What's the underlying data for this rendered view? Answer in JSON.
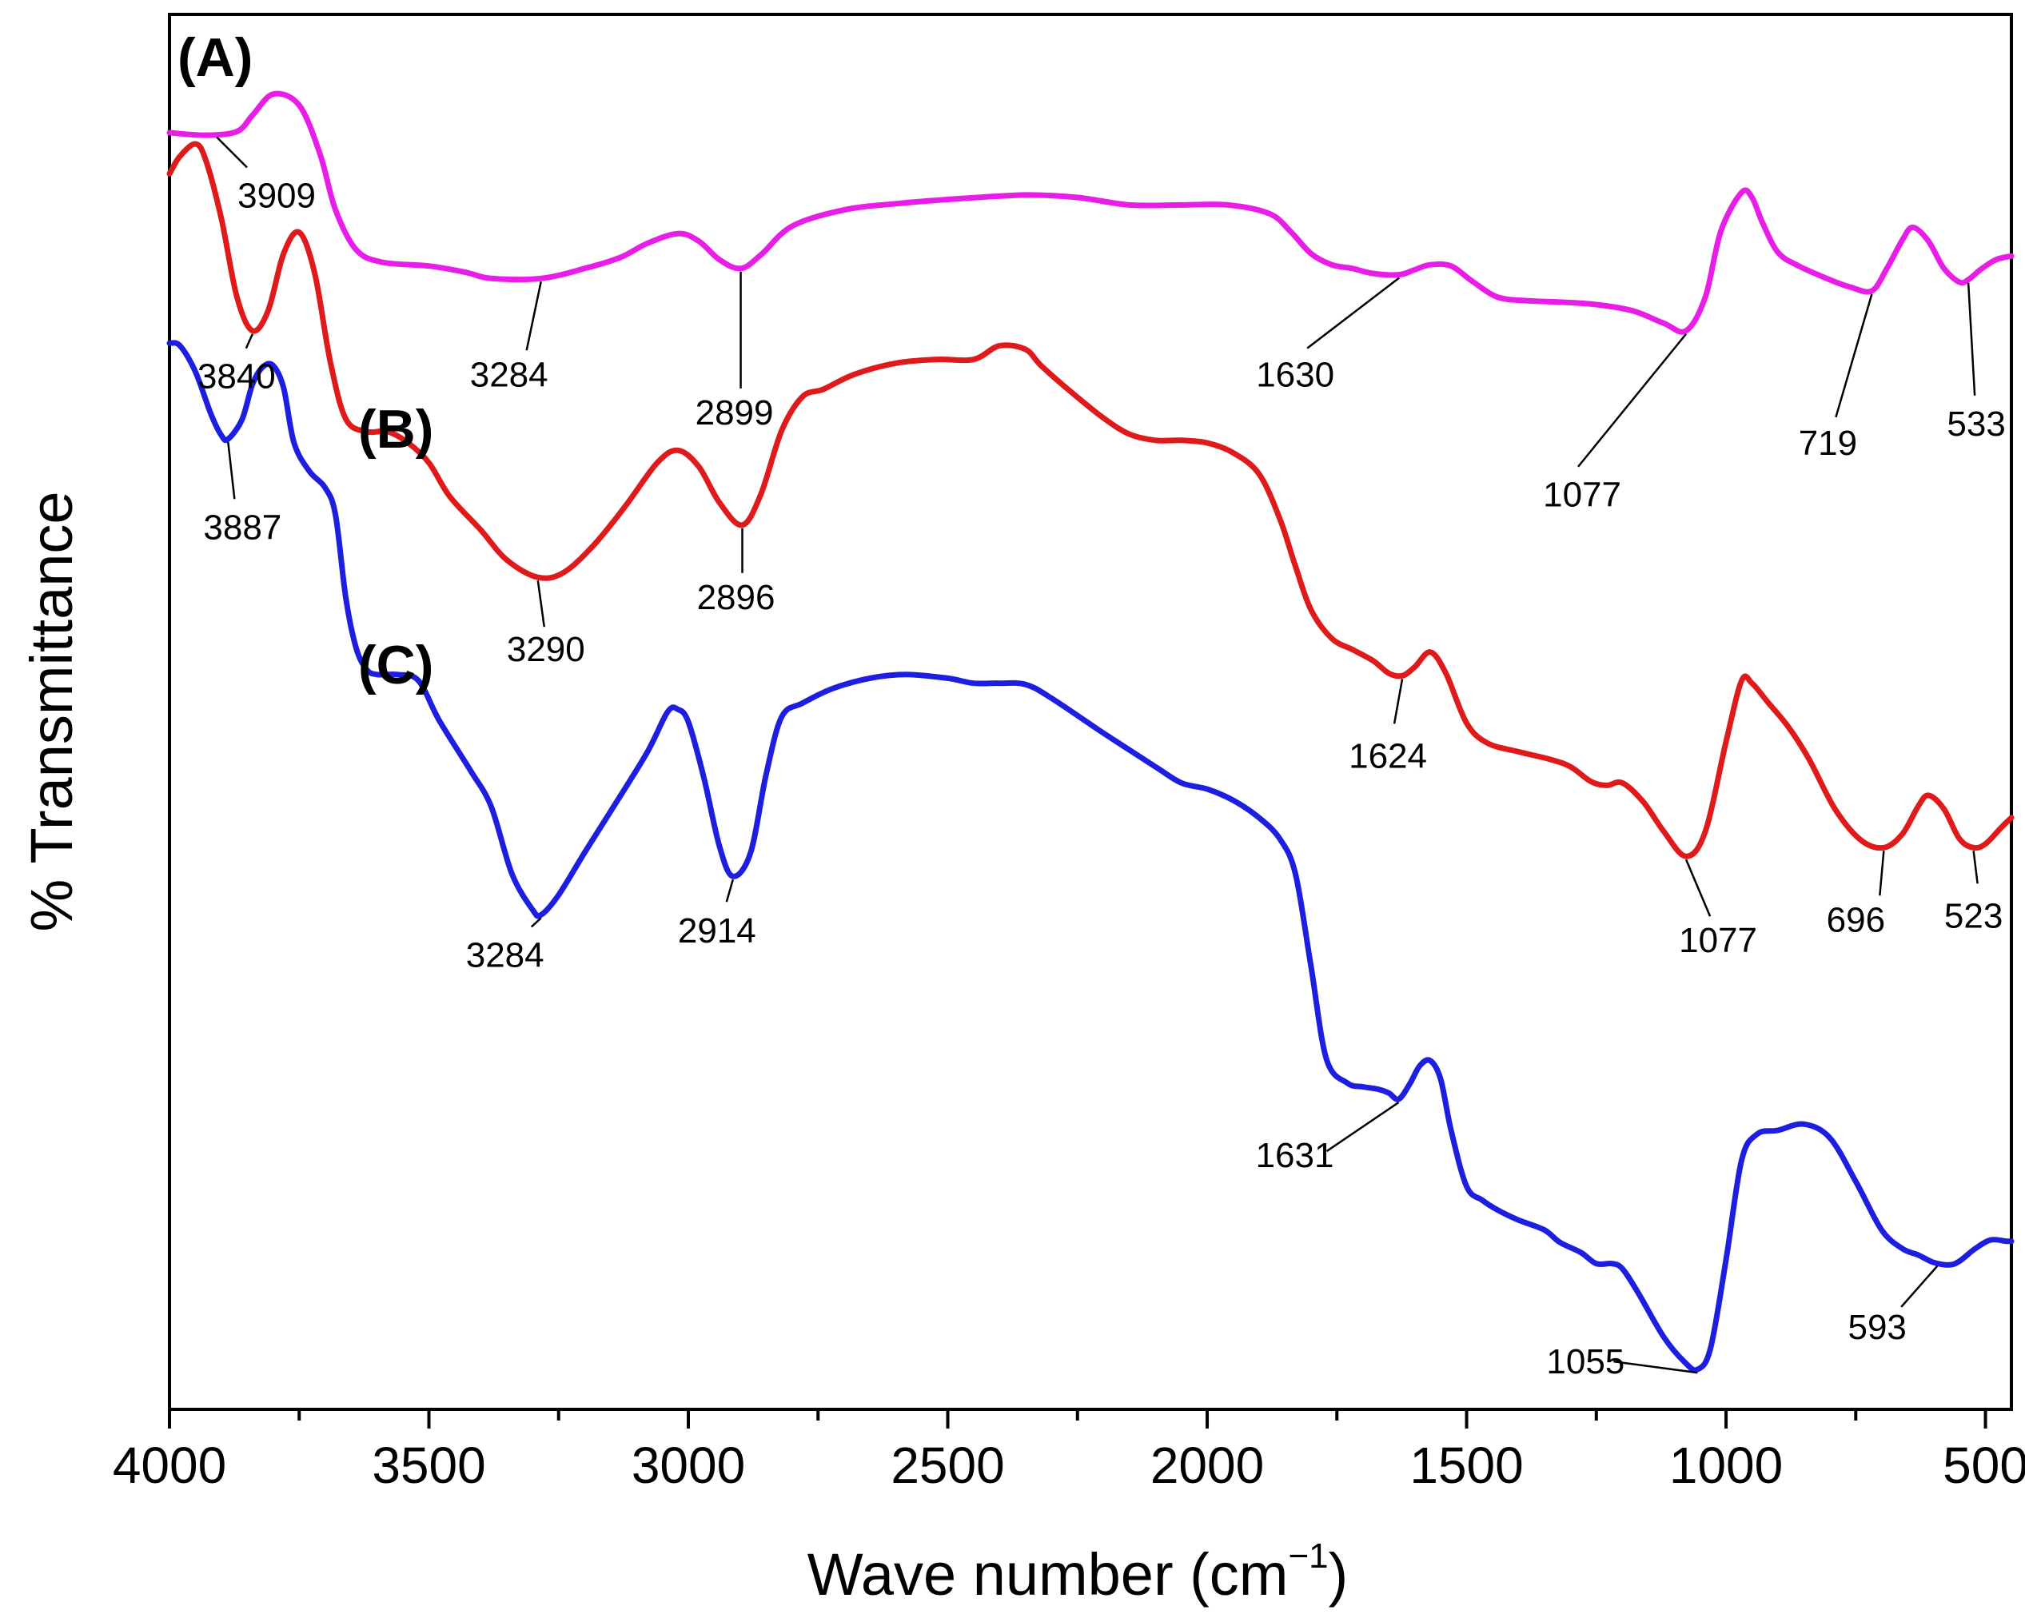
{
  "chart_data": {
    "type": "line",
    "xlabel": "Wave number (cm",
    "xlabel_sup": "−1",
    "xlabel_close": ")",
    "ylabel": "% Transmittance",
    "xlim": [
      4000,
      450
    ],
    "x_ticks": [
      4000,
      3500,
      3000,
      2500,
      2000,
      1500,
      1000,
      500
    ],
    "x_tick_labels": [
      "4000",
      "3500",
      "3000",
      "2500",
      "2000",
      "1500",
      "1000",
      "500"
    ],
    "y_ticks_shown": false,
    "series": [
      {
        "name": "(A)",
        "color": "#e81ee8",
        "x": [
          4000,
          3930,
          3870,
          3840,
          3800,
          3750,
          3710,
          3680,
          3640,
          3590,
          3500,
          3430,
          3380,
          3284,
          3200,
          3130,
          3080,
          3020,
          2980,
          2940,
          2899,
          2860,
          2800,
          2700,
          2600,
          2480,
          2350,
          2250,
          2150,
          2050,
          1960,
          1880,
          1840,
          1800,
          1760,
          1720,
          1680,
          1630,
          1600,
          1570,
          1530,
          1490,
          1440,
          1380,
          1320,
          1250,
          1180,
          1120,
          1077,
          1040,
          1010,
          970,
          950,
          930,
          900,
          860,
          800,
          760,
          719,
          690,
          660,
          640,
          610,
          580,
          550,
          533,
          510,
          480,
          450
        ],
        "y": [
          60.5,
          60.3,
          60.6,
          61.9,
          63.6,
          62.7,
          58.8,
          54.3,
          51.1,
          50.1,
          49.8,
          49.3,
          48.8,
          48.8,
          49.6,
          50.5,
          51.6,
          52.4,
          51.8,
          50.3,
          49.6,
          50.7,
          53.0,
          54.3,
          54.8,
          55.2,
          55.5,
          55.3,
          54.7,
          54.7,
          54.7,
          54.0,
          52.6,
          50.8,
          49.9,
          49.6,
          49.2,
          49.1,
          49.5,
          49.9,
          49.8,
          48.6,
          47.3,
          47.0,
          46.9,
          46.7,
          46.2,
          45.2,
          44.6,
          47.3,
          52.6,
          55.7,
          55.3,
          53.3,
          50.9,
          49.8,
          48.7,
          48.1,
          47.8,
          49.6,
          51.9,
          52.9,
          51.8,
          49.6,
          48.5,
          48.7,
          49.5,
          50.3,
          50.6
        ]
      },
      {
        "name": "(B)",
        "color": "#e01a1a",
        "x": [
          4000,
          3980,
          3950,
          3930,
          3900,
          3870,
          3840,
          3810,
          3780,
          3750,
          3720,
          3690,
          3660,
          3620,
          3580,
          3540,
          3500,
          3460,
          3400,
          3350,
          3290,
          3240,
          3180,
          3120,
          3060,
          3020,
          2980,
          2940,
          2896,
          2860,
          2820,
          2780,
          2740,
          2680,
          2600,
          2520,
          2450,
          2400,
          2350,
          2320,
          2260,
          2200,
          2150,
          2100,
          2050,
          2000,
          1950,
          1900,
          1860,
          1830,
          1800,
          1760,
          1720,
          1680,
          1650,
          1624,
          1600,
          1570,
          1540,
          1500,
          1460,
          1400,
          1340,
          1300,
          1260,
          1230,
          1200,
          1160,
          1120,
          1077,
          1040,
          1000,
          970,
          950,
          920,
          880,
          840,
          790,
          740,
          696,
          660,
          630,
          610,
          580,
          550,
          523,
          500,
          470,
          450
        ],
        "y": [
          57.2,
          58.6,
          59.6,
          58.3,
          53.6,
          47.3,
          44.6,
          46.2,
          50.8,
          52.5,
          49.2,
          42.1,
          37.5,
          36.5,
          36.5,
          35.6,
          34.0,
          31.3,
          28.6,
          26.2,
          24.8,
          25.2,
          27.5,
          30.6,
          34.0,
          35.0,
          33.7,
          30.8,
          29.0,
          31.5,
          36.6,
          39.3,
          39.9,
          41.1,
          42.0,
          42.3,
          42.3,
          43.4,
          43.1,
          41.8,
          39.6,
          37.6,
          36.3,
          35.8,
          35.8,
          35.6,
          34.8,
          33.1,
          29.5,
          25.7,
          22.2,
          19.9,
          19.0,
          18.1,
          17.1,
          16.9,
          17.6,
          18.8,
          17.1,
          13.1,
          11.5,
          10.8,
          10.2,
          9.6,
          8.4,
          8.1,
          8.3,
          6.8,
          4.4,
          2.4,
          4.4,
          11.6,
          16.5,
          16.3,
          14.8,
          12.8,
          10.2,
          6.2,
          3.7,
          3.1,
          4.2,
          6.4,
          7.3,
          6.2,
          3.8,
          3.1,
          3.4,
          4.7,
          5.5
        ]
      },
      {
        "name": "(C)",
        "color": "#1e1ee0",
        "x": [
          4000,
          3980,
          3950,
          3920,
          3900,
          3887,
          3860,
          3840,
          3820,
          3800,
          3780,
          3760,
          3730,
          3700,
          3680,
          3660,
          3640,
          3620,
          3600,
          3560,
          3520,
          3480,
          3420,
          3380,
          3340,
          3300,
          3284,
          3250,
          3200,
          3150,
          3080,
          3040,
          3020,
          3000,
          2970,
          2940,
          2914,
          2880,
          2850,
          2820,
          2780,
          2720,
          2650,
          2580,
          2500,
          2450,
          2400,
          2350,
          2300,
          2200,
          2100,
          2050,
          2000,
          1950,
          1900,
          1860,
          1830,
          1800,
          1770,
          1730,
          1700,
          1670,
          1650,
          1631,
          1610,
          1590,
          1570,
          1550,
          1530,
          1500,
          1470,
          1440,
          1400,
          1350,
          1320,
          1280,
          1250,
          1220,
          1200,
          1170,
          1120,
          1080,
          1055,
          1030,
          1000,
          970,
          940,
          900,
          850,
          800,
          750,
          700,
          660,
          630,
          600,
          570,
          550,
          520,
          490,
          460,
          450
        ],
        "y": [
          43.6,
          43.4,
          41.3,
          37.9,
          36.2,
          35.9,
          37.5,
          40.3,
          41.7,
          41.8,
          40.0,
          35.6,
          33.3,
          32.0,
          29.8,
          23.1,
          19.1,
          17.4,
          17.0,
          17.0,
          16.5,
          13.3,
          9.3,
          6.4,
          1.0,
          -1.9,
          -2.3,
          -0.7,
          2.7,
          6.0,
          10.7,
          14.0,
          14.2,
          13.2,
          8.7,
          3.2,
          0.8,
          2.7,
          9.0,
          13.6,
          14.7,
          15.9,
          16.7,
          17.0,
          16.7,
          16.3,
          16.3,
          16.2,
          15.1,
          12.3,
          9.6,
          8.3,
          7.8,
          6.9,
          5.5,
          3.8,
          1.0,
          -6.4,
          -13.9,
          -15.8,
          -16.1,
          -16.3,
          -16.6,
          -17.1,
          -15.9,
          -14.4,
          -14.0,
          -15.5,
          -19.6,
          -24.1,
          -25.2,
          -26.0,
          -26.8,
          -27.6,
          -28.6,
          -29.4,
          -30.3,
          -30.3,
          -30.7,
          -32.6,
          -36.2,
          -38.2,
          -38.8,
          -37.1,
          -30.0,
          -22.0,
          -19.9,
          -19.6,
          -19.1,
          -20.2,
          -23.7,
          -27.6,
          -29.1,
          -29.6,
          -30.2,
          -30.4,
          -30.1,
          -29.1,
          -28.4,
          -28.5,
          -28.5
        ]
      }
    ],
    "panel_labels": [
      {
        "text": "(A)",
        "series": "(A)"
      },
      {
        "text": "(B)",
        "series": "(B)"
      },
      {
        "text": "(C)",
        "series": "(C)"
      }
    ],
    "annotations": [
      {
        "series": "(A)",
        "x": 3909,
        "label": "3909"
      },
      {
        "series": "(A)",
        "x": 3284,
        "label": "3284"
      },
      {
        "series": "(A)",
        "x": 2899,
        "label": "2899"
      },
      {
        "series": "(A)",
        "x": 1630,
        "label": "1630"
      },
      {
        "series": "(A)",
        "x": 1077,
        "label": "1077"
      },
      {
        "series": "(A)",
        "x": 719,
        "label": "719"
      },
      {
        "series": "(A)",
        "x": 533,
        "label": "533"
      },
      {
        "series": "(B)",
        "x": 3840,
        "label": "3840"
      },
      {
        "series": "(B)",
        "x": 3290,
        "label": "3290"
      },
      {
        "series": "(B)",
        "x": 2896,
        "label": "2896"
      },
      {
        "series": "(B)",
        "x": 1624,
        "label": "1624"
      },
      {
        "series": "(B)",
        "x": 1077,
        "label": "1077"
      },
      {
        "series": "(B)",
        "x": 696,
        "label": "696"
      },
      {
        "series": "(B)",
        "x": 523,
        "label": "523"
      },
      {
        "series": "(C)",
        "x": 3887,
        "label": "3887"
      },
      {
        "series": "(C)",
        "x": 3284,
        "label": "3284"
      },
      {
        "series": "(C)",
        "x": 2914,
        "label": "2914"
      },
      {
        "series": "(C)",
        "x": 1631,
        "label": "1631"
      },
      {
        "series": "(C)",
        "x": 1055,
        "label": "1055"
      },
      {
        "series": "(C)",
        "x": 593,
        "label": "593"
      }
    ]
  }
}
